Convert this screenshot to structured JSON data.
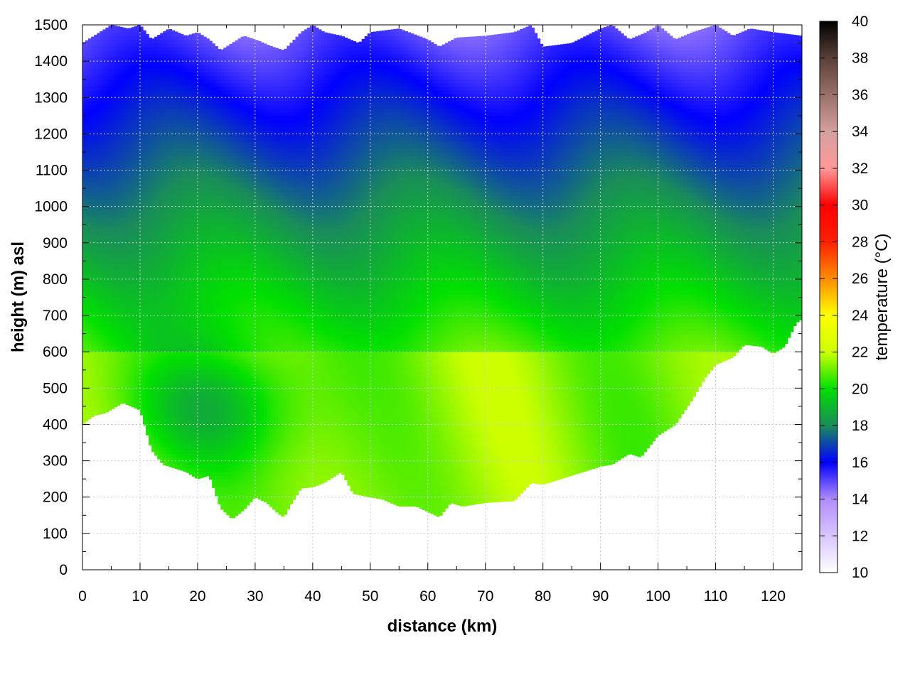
{
  "chart_data": {
    "type": "heatmap",
    "title": "",
    "xlabel": "distance (km)",
    "ylabel": "height (m) asl",
    "colorbar_label": "temperature (°C)",
    "xlim": [
      0,
      125
    ],
    "ylim": [
      0,
      1500
    ],
    "clim": [
      10,
      40
    ],
    "grid": true,
    "x_ticks": [
      0,
      10,
      20,
      30,
      40,
      50,
      60,
      70,
      80,
      90,
      100,
      110,
      120
    ],
    "y_ticks": [
      0,
      100,
      200,
      300,
      400,
      500,
      600,
      700,
      800,
      900,
      1000,
      1100,
      1200,
      1300,
      1400,
      1500
    ],
    "colorbar_ticks": [
      10,
      12,
      14,
      16,
      18,
      20,
      22,
      24,
      26,
      28,
      30,
      32,
      34,
      36,
      38,
      40
    ],
    "colormap": [
      {
        "t": 10,
        "color": "#ffffff"
      },
      {
        "t": 14,
        "color": "#b08cff"
      },
      {
        "t": 16,
        "color": "#0000ff"
      },
      {
        "t": 18,
        "color": "#1a8c5a"
      },
      {
        "t": 20,
        "color": "#00e000"
      },
      {
        "t": 22,
        "color": "#ccff00"
      },
      {
        "t": 24,
        "color": "#ffff00"
      },
      {
        "t": 26,
        "color": "#ff8c00"
      },
      {
        "t": 28,
        "color": "#ff2000"
      },
      {
        "t": 30,
        "color": "#ff0000"
      },
      {
        "t": 32,
        "color": "#ff9999"
      },
      {
        "t": 34,
        "color": "#d4a0a0"
      },
      {
        "t": 36,
        "color": "#9a7068"
      },
      {
        "t": 38,
        "color": "#5a4038"
      },
      {
        "t": 40,
        "color": "#000000"
      }
    ],
    "ground_profile": [
      [
        0,
        400
      ],
      [
        2,
        425
      ],
      [
        4,
        432
      ],
      [
        7,
        460
      ],
      [
        10,
        440
      ],
      [
        12,
        330
      ],
      [
        14,
        290
      ],
      [
        16,
        280
      ],
      [
        18,
        270
      ],
      [
        20,
        250
      ],
      [
        22,
        260
      ],
      [
        24,
        170
      ],
      [
        26,
        140
      ],
      [
        28,
        165
      ],
      [
        30,
        200
      ],
      [
        32,
        185
      ],
      [
        34,
        155
      ],
      [
        35,
        145
      ],
      [
        36,
        175
      ],
      [
        38,
        225
      ],
      [
        40,
        228
      ],
      [
        42,
        240
      ],
      [
        45,
        270
      ],
      [
        47,
        210
      ],
      [
        50,
        200
      ],
      [
        52,
        195
      ],
      [
        55,
        175
      ],
      [
        58,
        175
      ],
      [
        60,
        160
      ],
      [
        62,
        145
      ],
      [
        64,
        185
      ],
      [
        66,
        175
      ],
      [
        70,
        185
      ],
      [
        75,
        190
      ],
      [
        78,
        240
      ],
      [
        80,
        235
      ],
      [
        84,
        255
      ],
      [
        88,
        275
      ],
      [
        90,
        285
      ],
      [
        92,
        290
      ],
      [
        95,
        320
      ],
      [
        97,
        310
      ],
      [
        100,
        370
      ],
      [
        103,
        400
      ],
      [
        106,
        470
      ],
      [
        108,
        525
      ],
      [
        110,
        565
      ],
      [
        113,
        585
      ],
      [
        115,
        620
      ],
      [
        118,
        615
      ],
      [
        120,
        595
      ],
      [
        122,
        615
      ],
      [
        124,
        680
      ],
      [
        125,
        690
      ]
    ],
    "top_profile": [
      [
        0,
        1450
      ],
      [
        2,
        1470
      ],
      [
        5,
        1500
      ],
      [
        8,
        1490
      ],
      [
        10,
        1500
      ],
      [
        12,
        1460
      ],
      [
        15,
        1490
      ],
      [
        18,
        1470
      ],
      [
        20,
        1480
      ],
      [
        22,
        1460
      ],
      [
        24,
        1430
      ],
      [
        26,
        1450
      ],
      [
        28,
        1470
      ],
      [
        30,
        1460
      ],
      [
        33,
        1440
      ],
      [
        35,
        1430
      ],
      [
        38,
        1480
      ],
      [
        40,
        1500
      ],
      [
        42,
        1480
      ],
      [
        45,
        1470
      ],
      [
        48,
        1450
      ],
      [
        50,
        1480
      ],
      [
        55,
        1490
      ],
      [
        60,
        1460
      ],
      [
        62,
        1440
      ],
      [
        65,
        1465
      ],
      [
        70,
        1470
      ],
      [
        75,
        1480
      ],
      [
        78,
        1500
      ],
      [
        80,
        1440
      ],
      [
        85,
        1450
      ],
      [
        90,
        1490
      ],
      [
        92,
        1500
      ],
      [
        95,
        1460
      ],
      [
        98,
        1480
      ],
      [
        100,
        1500
      ],
      [
        103,
        1460
      ],
      [
        106,
        1480
      ],
      [
        110,
        1500
      ],
      [
        113,
        1470
      ],
      [
        116,
        1490
      ],
      [
        120,
        1480
      ],
      [
        125,
        1470
      ]
    ],
    "temperature_field": {
      "description": "temperature decreases with height; ~21°C at 400-800 m, ~19°C near 1100 m, ~16-17°C near 1400 m; cooler pocket ~18.5°C near x=10-35 km, y=300-650 m",
      "lapse_rate_c_per_km": -6.5,
      "surface_reference": {
        "height_m": 500,
        "temp_c": 21.3
      }
    }
  }
}
